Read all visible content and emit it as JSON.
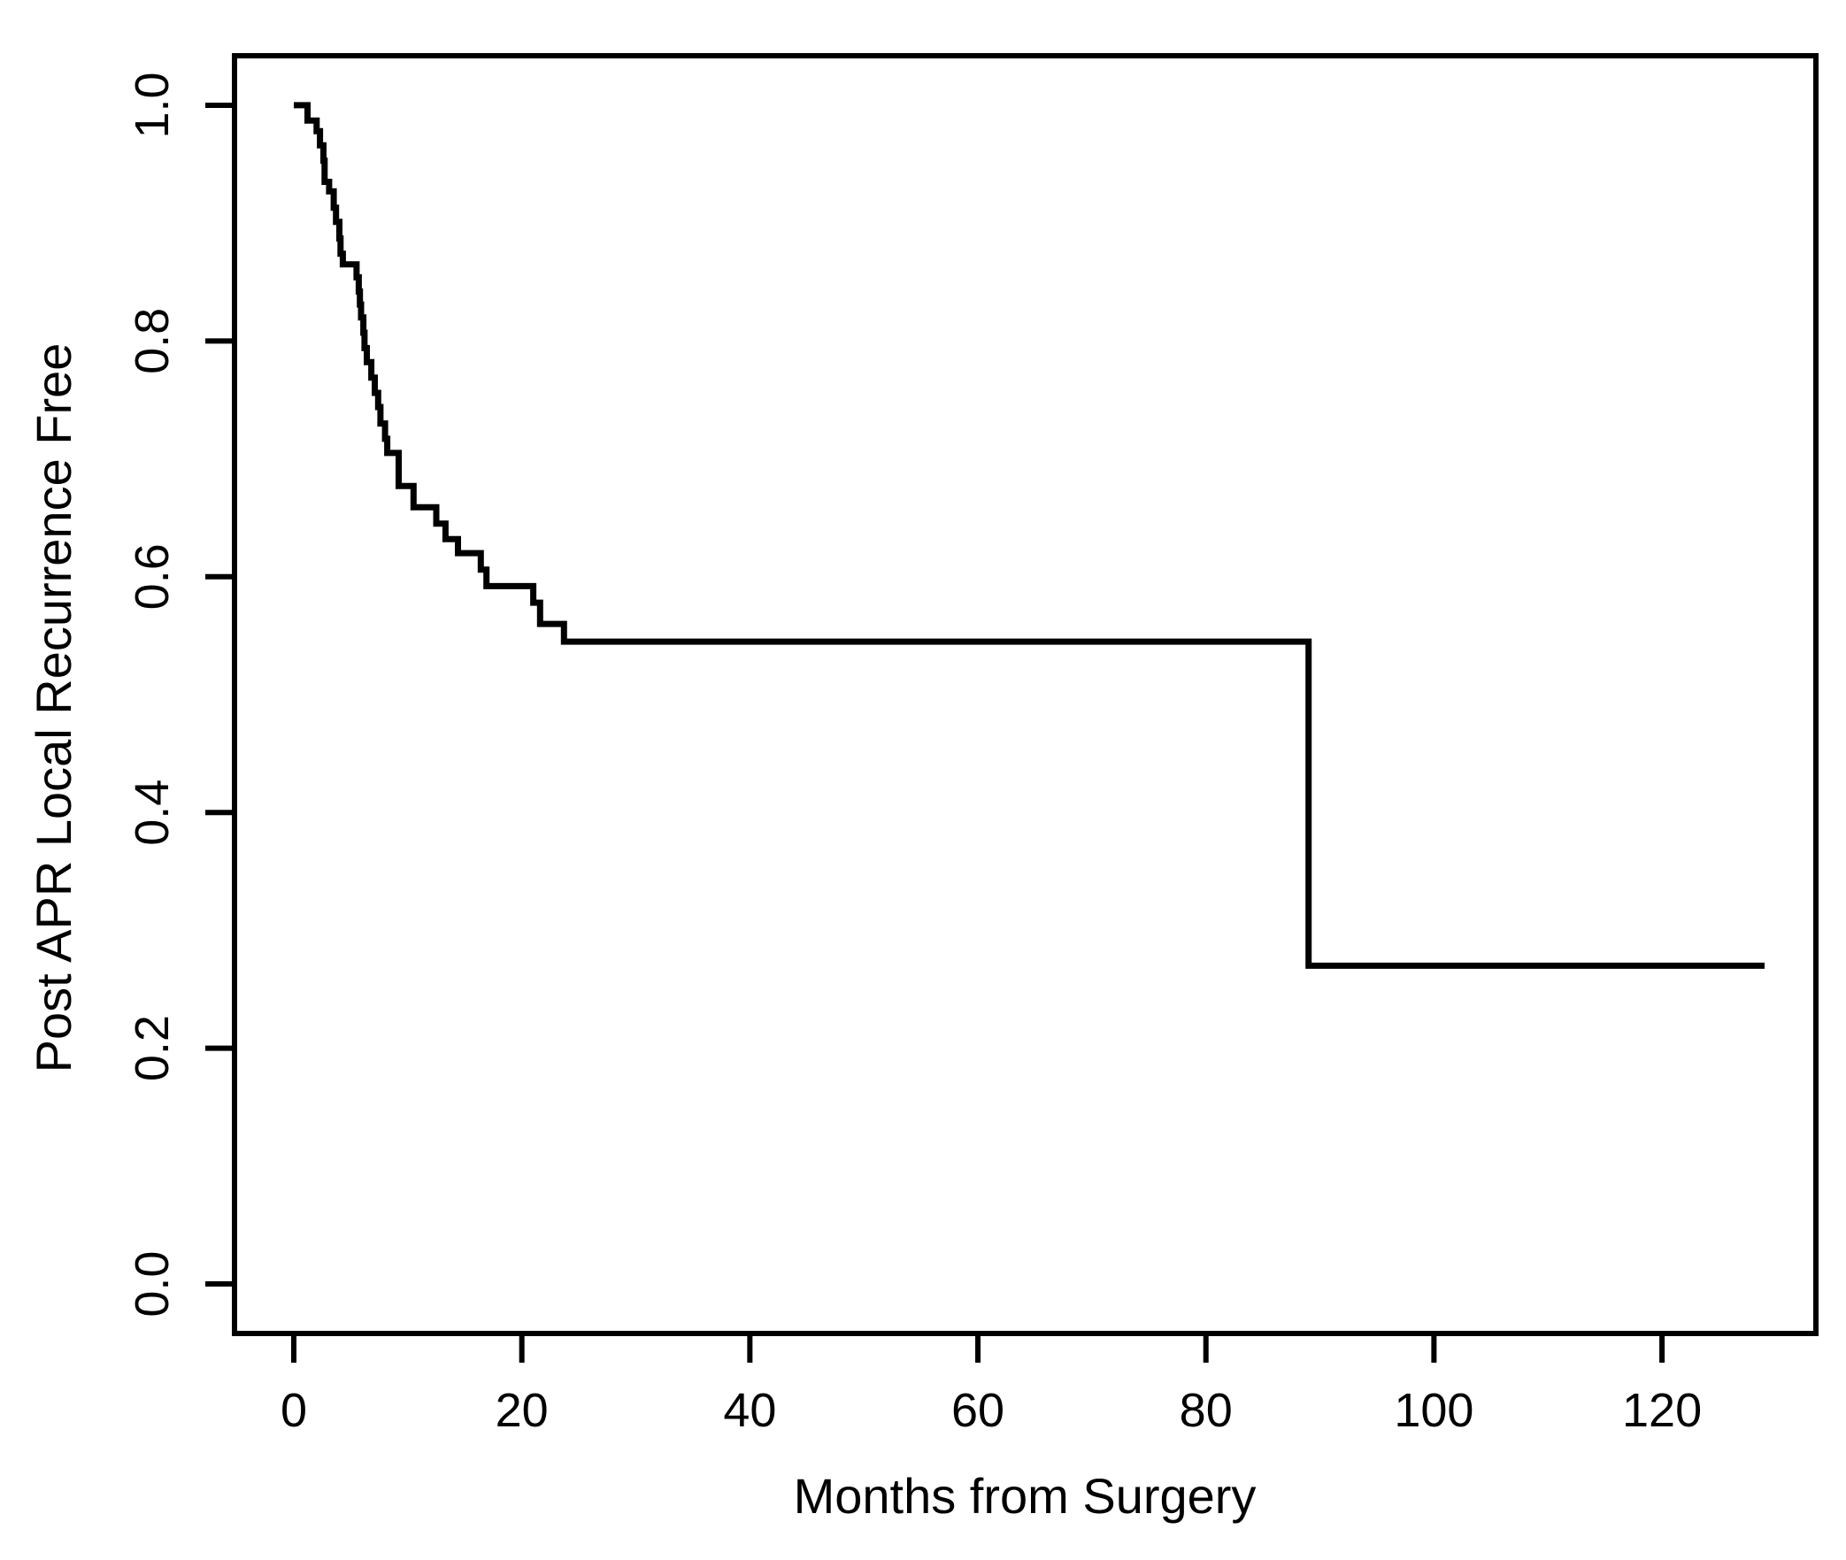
{
  "figure": {
    "background_color": "#ffffff",
    "curve_color": "#000000",
    "text_color": "#000000",
    "title": ""
  },
  "chart_data": {
    "type": "line",
    "subtype": "kaplan-meier-step",
    "title": "",
    "xlabel": "Months from Surgery",
    "ylabel": "Post APR Local Recurrence Free",
    "xlim": [
      0,
      130
    ],
    "ylim": [
      0,
      1
    ],
    "grid": false,
    "legend": null,
    "x_tick_labels": [
      "0",
      "20",
      "40",
      "60",
      "80",
      "100",
      "120"
    ],
    "x_tick_values": [
      0,
      20,
      40,
      60,
      80,
      100,
      120
    ],
    "y_tick_labels": [
      "0.0",
      "0.2",
      "0.4",
      "0.6",
      "0.8",
      "1.0"
    ],
    "y_tick_values": [
      0.0,
      0.2,
      0.4,
      0.6,
      0.8,
      1.0
    ],
    "series": [
      {
        "name": "Post APR local recurrence free",
        "end_time": 129,
        "steps": [
          [
            0,
            1.0
          ],
          [
            1.2,
            0.987
          ],
          [
            2.0,
            0.978
          ],
          [
            2.3,
            0.966
          ],
          [
            2.6,
            0.953
          ],
          [
            2.7,
            0.935
          ],
          [
            3.1,
            0.927
          ],
          [
            3.5,
            0.913
          ],
          [
            3.7,
            0.901
          ],
          [
            4.0,
            0.887
          ],
          [
            4.1,
            0.874
          ],
          [
            4.3,
            0.865
          ],
          [
            5.5,
            0.854
          ],
          [
            5.7,
            0.842
          ],
          [
            5.8,
            0.831
          ],
          [
            5.9,
            0.82
          ],
          [
            6.1,
            0.807
          ],
          [
            6.2,
            0.794
          ],
          [
            6.4,
            0.782
          ],
          [
            6.8,
            0.769
          ],
          [
            7.1,
            0.756
          ],
          [
            7.4,
            0.744
          ],
          [
            7.6,
            0.73
          ],
          [
            8.0,
            0.717
          ],
          [
            8.2,
            0.705
          ],
          [
            9.2,
            0.677
          ],
          [
            10.5,
            0.659
          ],
          [
            12.5,
            0.645
          ],
          [
            13.3,
            0.632
          ],
          [
            14.4,
            0.62
          ],
          [
            16.4,
            0.606
          ],
          [
            16.9,
            0.592
          ],
          [
            21.0,
            0.578
          ],
          [
            21.6,
            0.56
          ],
          [
            23.7,
            0.545
          ],
          [
            89,
            0.27
          ]
        ]
      }
    ]
  }
}
